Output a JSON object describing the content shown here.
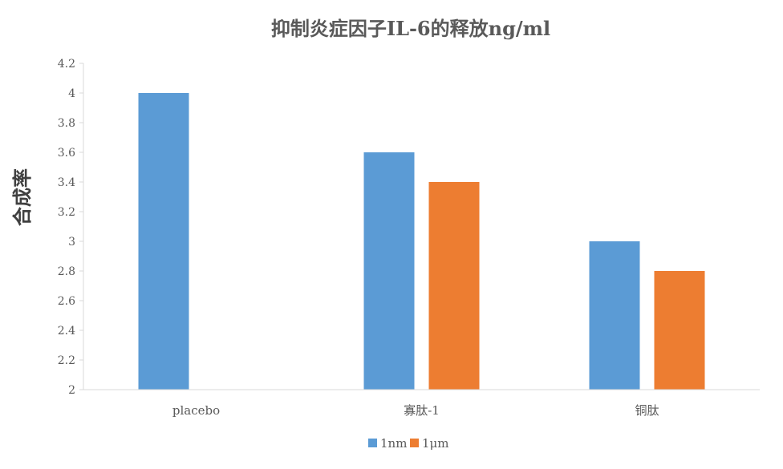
{
  "chart_data": {
    "type": "bar",
    "title": "抑制炎症因子IL-6的释放ng/ml",
    "xlabel": "",
    "ylabel": "合成率",
    "ylim": [
      2,
      4.2
    ],
    "yticks": [
      "2",
      "2.2",
      "2.4",
      "2.6",
      "2.8",
      "3",
      "3.2",
      "3.4",
      "3.6",
      "3.8",
      "4",
      "4.2"
    ],
    "categories": [
      "placebo",
      "寡肽-1",
      "铜肽"
    ],
    "series": [
      {
        "name": "1nm",
        "color": "#5B9BD5",
        "values": [
          4.0,
          3.6,
          3.0
        ]
      },
      {
        "name": "1μm",
        "color": "#ED7D31",
        "values": [
          null,
          3.4,
          2.8
        ]
      }
    ],
    "legend_position": "bottom",
    "grid": false
  }
}
